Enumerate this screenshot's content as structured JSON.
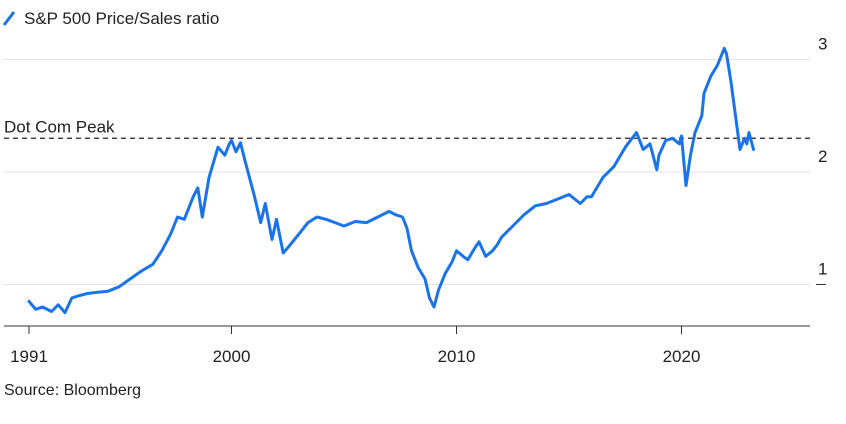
{
  "chart_data": {
    "type": "line",
    "title": "",
    "legend": [
      {
        "label": "S&P 500 Price/Sales ratio",
        "color": "#1a73e8"
      }
    ],
    "xlabel": "",
    "ylabel": "",
    "x_ticks": [
      "1991",
      "2000",
      "2010",
      "2020"
    ],
    "y_ticks": [
      "1",
      "2",
      "3"
    ],
    "xlim": [
      1991,
      2024.5
    ],
    "ylim": [
      0.65,
      3.2
    ],
    "grid": true,
    "annotation": {
      "label": "Dot Com Peak",
      "value": 2.3,
      "style": "dashed"
    },
    "series": [
      {
        "name": "S&P 500 Price/Sales ratio",
        "color": "#1a73e8",
        "x": [
          1991.0,
          1991.3,
          1991.6,
          1992.0,
          1992.3,
          1992.6,
          1992.9,
          1993.2,
          1993.6,
          1994.0,
          1994.5,
          1995.0,
          1995.5,
          1996.0,
          1996.5,
          1996.9,
          1997.3,
          1997.6,
          1997.9,
          1998.3,
          1998.5,
          1998.7,
          1999.0,
          1999.4,
          1999.7,
          1999.9,
          2000.0,
          2000.2,
          2000.4,
          2000.6,
          2000.8,
          2001.0,
          2001.3,
          2001.5,
          2001.8,
          2002.0,
          2002.3,
          2002.6,
          2002.8,
          2003.0,
          2003.4,
          2003.8,
          2004.2,
          2004.6,
          2005.0,
          2005.5,
          2006.0,
          2006.5,
          2007.0,
          2007.3,
          2007.6,
          2007.8,
          2008.0,
          2008.3,
          2008.6,
          2008.8,
          2009.0,
          2009.2,
          2009.5,
          2009.8,
          2010.0,
          2010.3,
          2010.5,
          2010.8,
          2011.0,
          2011.3,
          2011.6,
          2011.8,
          2012.0,
          2012.5,
          2013.0,
          2013.5,
          2014.0,
          2014.5,
          2015.0,
          2015.5,
          2015.8,
          2016.0,
          2016.5,
          2017.0,
          2017.5,
          2018.0,
          2018.3,
          2018.6,
          2018.9,
          2019.0,
          2019.3,
          2019.6,
          2019.9,
          2020.0,
          2020.2,
          2020.4,
          2020.6,
          2020.9,
          2021.0,
          2021.3,
          2021.6,
          2021.9,
          2022.0,
          2022.2,
          2022.4,
          2022.6,
          2022.8,
          2022.9,
          2023.0,
          2023.2
        ],
        "values": [
          0.85,
          0.78,
          0.8,
          0.76,
          0.82,
          0.75,
          0.88,
          0.9,
          0.92,
          0.93,
          0.94,
          0.98,
          1.05,
          1.12,
          1.18,
          1.3,
          1.45,
          1.6,
          1.58,
          1.78,
          1.86,
          1.6,
          1.95,
          2.22,
          2.15,
          2.25,
          2.28,
          2.18,
          2.26,
          2.1,
          1.95,
          1.8,
          1.55,
          1.72,
          1.4,
          1.58,
          1.28,
          1.35,
          1.4,
          1.45,
          1.55,
          1.6,
          1.58,
          1.55,
          1.52,
          1.56,
          1.55,
          1.6,
          1.65,
          1.62,
          1.6,
          1.5,
          1.3,
          1.15,
          1.05,
          0.88,
          0.8,
          0.95,
          1.1,
          1.2,
          1.3,
          1.25,
          1.22,
          1.32,
          1.38,
          1.25,
          1.3,
          1.35,
          1.42,
          1.52,
          1.62,
          1.7,
          1.72,
          1.76,
          1.8,
          1.72,
          1.78,
          1.78,
          1.95,
          2.05,
          2.22,
          2.35,
          2.2,
          2.25,
          2.02,
          2.15,
          2.28,
          2.3,
          2.25,
          2.32,
          1.88,
          2.15,
          2.35,
          2.5,
          2.7,
          2.85,
          2.95,
          3.1,
          3.05,
          2.8,
          2.5,
          2.2,
          2.3,
          2.25,
          2.35,
          2.2
        ]
      }
    ]
  },
  "source": "Source: Bloomberg",
  "colors": {
    "line": "#1a73e8",
    "grid": "#e3e3e3",
    "axis": "#333333",
    "reference": "#222222"
  }
}
